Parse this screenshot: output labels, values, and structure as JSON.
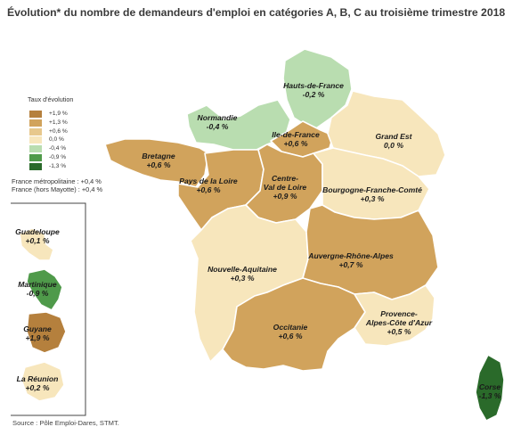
{
  "title": "Évolution* du nombre de demandeurs d'emploi en catégories A, B, C au troisième trimestre 2018",
  "legend": {
    "title": "Taux d'évolution",
    "items": [
      {
        "label": "+1,9 %",
        "color": "#b5803d"
      },
      {
        "label": "+1,3 %",
        "color": "#d1a35c"
      },
      {
        "label": "+0,6 %",
        "color": "#e7c88d"
      },
      {
        "label": "0,0 %",
        "color": "#f7e6bc"
      },
      {
        "label": "-0,4 %",
        "color": "#b9ddb0"
      },
      {
        "label": "-0,9 %",
        "color": "#4f9a4a"
      },
      {
        "label": "-1,3 %",
        "color": "#2a6a2a"
      }
    ]
  },
  "france_lines": [
    "France métropolitaine : +0,4 %",
    "France (hors Mayotte) : +0,4 %"
  ],
  "source": "Source : Pôle Emploi-Dares, STMT.",
  "regions": [
    {
      "name": "Hauts-de-France",
      "value": "-0,2 %",
      "color": "#b9ddb0"
    },
    {
      "name": "Normandie",
      "value": "-0,4 %",
      "color": "#b9ddb0"
    },
    {
      "name": "Ile-de-France",
      "value": "+0,6 %",
      "color": "#d1a35c"
    },
    {
      "name": "Grand Est",
      "value": "0,0 %",
      "color": "#f7e6bc"
    },
    {
      "name": "Bretagne",
      "value": "+0,6 %",
      "color": "#d1a35c"
    },
    {
      "name": "Pays de la Loire",
      "value": "+0,6 %",
      "color": "#d1a35c"
    },
    {
      "name": "Centre-Val de Loire",
      "name_lines": [
        "Centre-",
        "Val de Loire"
      ],
      "value": "+0,9 %",
      "color": "#d1a35c"
    },
    {
      "name": "Bourgogne-Franche-Comté",
      "value": "+0,3 %",
      "color": "#f7e6bc"
    },
    {
      "name": "Nouvelle-Aquitaine",
      "value": "+0,3 %",
      "color": "#f7e6bc"
    },
    {
      "name": "Auvergne-Rhône-Alpes",
      "value": "+0,7 %",
      "color": "#d1a35c"
    },
    {
      "name": "Occitanie",
      "value": "+0,6 %",
      "color": "#d1a35c"
    },
    {
      "name": "Provence-Alpes-Côte d'Azur",
      "name_lines": [
        "Provence-",
        "Alpes-Côte d'Azur"
      ],
      "value": "+0,5 %",
      "color": "#f7e6bc"
    },
    {
      "name": "Corse",
      "value": "-1,3 %",
      "color": "#2a6a2a"
    }
  ],
  "overseas": [
    {
      "name": "Guadeloupe",
      "value": "+0,1 %",
      "color": "#f7e6bc"
    },
    {
      "name": "Martinique",
      "value": "-0,9 %",
      "color": "#4f9a4a"
    },
    {
      "name": "Guyane",
      "value": "+1,9 %",
      "color": "#b5803d"
    },
    {
      "name": "La Réunion",
      "value": "+0,2 %",
      "color": "#f7e6bc"
    }
  ]
}
